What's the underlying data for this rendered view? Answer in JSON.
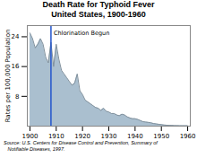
{
  "chart_data": {
    "type": "area",
    "title": "Death Rate for Typhoid Fever\nUnited States, 1900-1960",
    "ylabel": "Rates per 100,000 Population",
    "caption": "Source: U.S. Centers for Disease Control and Prevention, Summary of\n   Notifiable Diseases, 1997.",
    "x": [
      1900,
      1901,
      1902,
      1903,
      1904,
      1905,
      1906,
      1907,
      1908,
      1909,
      1910,
      1911,
      1912,
      1913,
      1914,
      1915,
      1916,
      1917,
      1918,
      1919,
      1920,
      1921,
      1922,
      1923,
      1924,
      1925,
      1926,
      1927,
      1928,
      1929,
      1930,
      1931,
      1932,
      1933,
      1934,
      1935,
      1936,
      1937,
      1938,
      1939,
      1940,
      1941,
      1942,
      1943,
      1944,
      1945,
      1946,
      1947,
      1948,
      1949,
      1950,
      1951,
      1952,
      1953,
      1954,
      1955,
      1956,
      1957,
      1958,
      1959,
      1960
    ],
    "values": [
      25.0,
      23.5,
      21.0,
      22.0,
      23.5,
      22.0,
      18.5,
      17.0,
      22.5,
      16.0,
      22.0,
      18.0,
      15.0,
      14.0,
      13.0,
      12.0,
      11.0,
      11.5,
      14.0,
      9.5,
      8.5,
      7.0,
      6.5,
      6.0,
      5.5,
      5.0,
      4.8,
      4.2,
      4.8,
      4.0,
      3.8,
      3.4,
      3.4,
      3.0,
      2.8,
      3.2,
      3.0,
      2.5,
      2.2,
      2.0,
      2.0,
      1.8,
      1.5,
      1.2,
      1.1,
      1.0,
      0.9,
      0.7,
      0.6,
      0.5,
      0.4,
      0.3,
      0.25,
      0.2,
      0.2,
      0.15,
      0.15,
      0.1,
      0.1,
      0.1,
      0.1
    ],
    "color": "#AABFCF",
    "xlim": [
      1899,
      1961
    ],
    "ylim": [
      0,
      27
    ],
    "xticks": [
      1900,
      1910,
      1920,
      1930,
      1940,
      1950,
      1960
    ],
    "yticks": [
      8,
      16,
      24
    ],
    "annotations": [
      {
        "x": 1908,
        "text": "Chlorination Begun",
        "color": "#2255CC"
      }
    ]
  }
}
